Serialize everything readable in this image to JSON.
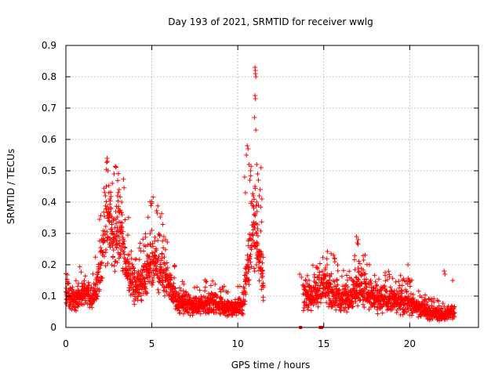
{
  "chart_data": {
    "type": "scatter",
    "title": "Day 193 of 2021, SRMTID for receiver wwlg",
    "xlabel": "GPS time / hours",
    "ylabel": "SRMTID / TECUs",
    "xlim": [
      0,
      24
    ],
    "ylim": [
      0,
      0.9
    ],
    "xticks": [
      0,
      5,
      10,
      15,
      20
    ],
    "yticks": [
      0,
      0.1,
      0.2,
      0.3,
      0.4,
      0.5,
      0.6,
      0.7,
      0.8,
      0.9
    ],
    "xtick_labels": [
      "0",
      "5",
      "10",
      "15",
      "20"
    ],
    "ytick_labels": [
      "0",
      "0.1",
      "0.2",
      "0.3",
      "0.4",
      "0.5",
      "0.6",
      "0.7",
      "0.8",
      "0.9"
    ],
    "grid": true,
    "legend": false,
    "marker": "plus",
    "color": "#ff0000",
    "series": [
      {
        "name": "SRMTID",
        "sample_spacing_hours": 0.02,
        "segments": [
          {
            "x_start": 0.0,
            "x_end": 11.5,
            "envelope": [
              [
                0.0,
                0.11
              ],
              [
                0.5,
                0.09
              ],
              [
                1.0,
                0.11
              ],
              [
                1.5,
                0.1
              ],
              [
                1.8,
                0.13
              ],
              [
                2.2,
                0.26
              ],
              [
                2.5,
                0.34
              ],
              [
                2.8,
                0.28
              ],
              [
                3.2,
                0.3
              ],
              [
                3.5,
                0.2
              ],
              [
                4.0,
                0.13
              ],
              [
                4.5,
                0.15
              ],
              [
                5.0,
                0.22
              ],
              [
                5.5,
                0.19
              ],
              [
                6.0,
                0.14
              ],
              [
                6.5,
                0.08
              ],
              [
                7.5,
                0.07
              ],
              [
                8.5,
                0.08
              ],
              [
                9.5,
                0.06
              ],
              [
                10.3,
                0.07
              ],
              [
                10.6,
                0.22
              ],
              [
                10.9,
                0.3
              ],
              [
                11.1,
                0.28
              ],
              [
                11.3,
                0.22
              ],
              [
                11.5,
                0.12
              ]
            ],
            "amplitude": 0.3
          },
          {
            "x_start": 13.8,
            "x_end": 22.6,
            "envelope": [
              [
                13.8,
                0.1
              ],
              [
                14.5,
                0.11
              ],
              [
                15.0,
                0.14
              ],
              [
                15.5,
                0.12
              ],
              [
                16.0,
                0.09
              ],
              [
                16.5,
                0.1
              ],
              [
                17.0,
                0.14
              ],
              [
                17.5,
                0.11
              ],
              [
                18.0,
                0.09
              ],
              [
                19.0,
                0.09
              ],
              [
                20.0,
                0.08
              ],
              [
                21.0,
                0.05
              ],
              [
                22.0,
                0.04
              ],
              [
                22.6,
                0.05
              ]
            ],
            "amplitude": 0.35
          }
        ],
        "spikes": [
          {
            "x": 2.4,
            "y": 0.54
          },
          {
            "x": 2.42,
            "y": 0.53
          },
          {
            "x": 2.45,
            "y": 0.5
          },
          {
            "x": 2.35,
            "y": 0.45
          },
          {
            "x": 2.5,
            "y": 0.43
          },
          {
            "x": 2.55,
            "y": 0.41
          },
          {
            "x": 2.3,
            "y": 0.42
          },
          {
            "x": 2.8,
            "y": 0.49
          },
          {
            "x": 3.0,
            "y": 0.42
          },
          {
            "x": 3.1,
            "y": 0.44
          },
          {
            "x": 3.25,
            "y": 0.4
          },
          {
            "x": 3.05,
            "y": 0.38
          },
          {
            "x": 2.7,
            "y": 0.46
          },
          {
            "x": 2.9,
            "y": 0.37
          },
          {
            "x": 5.0,
            "y": 0.31
          },
          {
            "x": 4.9,
            "y": 0.3
          },
          {
            "x": 5.7,
            "y": 0.29
          },
          {
            "x": 5.8,
            "y": 0.28
          },
          {
            "x": 10.4,
            "y": 0.48
          },
          {
            "x": 10.5,
            "y": 0.55
          },
          {
            "x": 10.55,
            "y": 0.58
          },
          {
            "x": 10.6,
            "y": 0.57
          },
          {
            "x": 10.65,
            "y": 0.52
          },
          {
            "x": 10.7,
            "y": 0.47
          },
          {
            "x": 10.75,
            "y": 0.5
          },
          {
            "x": 10.45,
            "y": 0.43
          },
          {
            "x": 10.85,
            "y": 0.39
          },
          {
            "x": 11.0,
            "y": 0.83
          },
          {
            "x": 11.02,
            "y": 0.82
          },
          {
            "x": 11.03,
            "y": 0.81
          },
          {
            "x": 11.05,
            "y": 0.8
          },
          {
            "x": 11.0,
            "y": 0.74
          },
          {
            "x": 11.03,
            "y": 0.73
          },
          {
            "x": 10.97,
            "y": 0.67
          },
          {
            "x": 11.05,
            "y": 0.63
          },
          {
            "x": 11.1,
            "y": 0.52
          },
          {
            "x": 11.15,
            "y": 0.49
          },
          {
            "x": 11.2,
            "y": 0.47
          },
          {
            "x": 11.35,
            "y": 0.51
          },
          {
            "x": 11.3,
            "y": 0.44
          },
          {
            "x": 11.4,
            "y": 0.41
          },
          {
            "x": 11.0,
            "y": 0.45
          },
          {
            "x": 11.25,
            "y": 0.42
          },
          {
            "x": 11.1,
            "y": 0.4
          },
          {
            "x": 10.9,
            "y": 0.42
          },
          {
            "x": 11.2,
            "y": 0.39
          },
          {
            "x": 11.12,
            "y": 0.37
          },
          {
            "x": 10.95,
            "y": 0.36
          },
          {
            "x": 16.9,
            "y": 0.29
          },
          {
            "x": 17.0,
            "y": 0.28
          },
          {
            "x": 16.95,
            "y": 0.27
          },
          {
            "x": 15.1,
            "y": 0.19
          },
          {
            "x": 15.2,
            "y": 0.2
          },
          {
            "x": 19.9,
            "y": 0.2
          },
          {
            "x": 22.0,
            "y": 0.18
          },
          {
            "x": 22.05,
            "y": 0.17
          },
          {
            "x": 22.5,
            "y": 0.15
          },
          {
            "x": 13.6,
            "y": 0.17
          },
          {
            "x": 13.7,
            "y": 0.16
          }
        ],
        "zero_markers": [
          {
            "x": 13.65,
            "y": 0
          },
          {
            "x": 14.8,
            "y": 0
          },
          {
            "x": 14.88,
            "y": 0
          }
        ]
      }
    ]
  }
}
